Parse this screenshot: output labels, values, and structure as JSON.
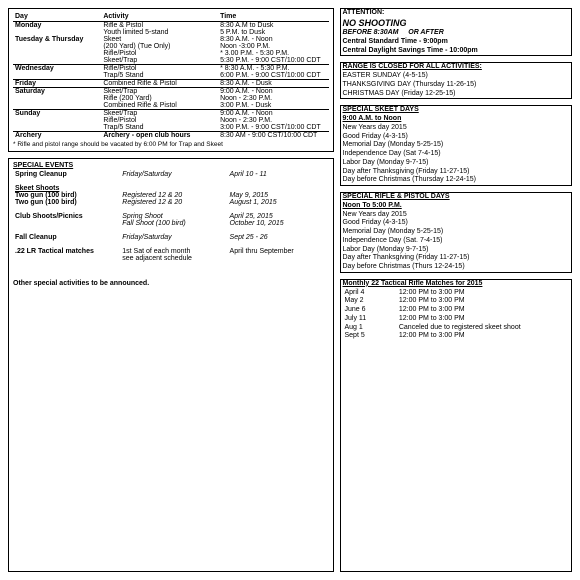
{
  "schedule": {
    "headers": [
      "Day",
      "Activity",
      "Time"
    ],
    "rows": [
      {
        "day": "Monday",
        "act": "Rifle & Pistol",
        "time": "8:30 A.M to Dusk",
        "bold": true
      },
      {
        "day": "",
        "act": "Youth limited 5-stand",
        "time": "5 P.M. to Dusk"
      },
      {
        "day": "Tuesday & Thursday",
        "act": "Skeet",
        "time": "8:30 A.M. - Noon",
        "bold": true
      },
      {
        "day": "",
        "act": "(200 Yard) (Tue Only)",
        "time": "Noon -3:00 P.M.",
        "indent": true
      },
      {
        "day": "",
        "act": "Rifle/Pistol",
        "time": "* 3.00 P.M. - 5:30 P.M."
      },
      {
        "day": "",
        "act": "Skeet/Trap",
        "time": "5:30 P.M. - 9:00 CST/10:00 CDT",
        "line": true
      },
      {
        "day": "Wednesday",
        "act": "Rifle/Pistol",
        "time": "* 8:30 A.M. - 5:30 P.M.",
        "bold": true
      },
      {
        "day": "",
        "act": "Trap/5 Stand",
        "time": "6:00 P.M. - 9:00 CST/10:00 CDT",
        "line": true
      },
      {
        "day": "Friday",
        "act": "Combined Rifle & Pistol",
        "time": "8:30 A.M. - Dusk",
        "bold": true,
        "line": true
      },
      {
        "day": "Saturday",
        "act": "Skeet/Trap",
        "time": "9:00 A.M. - Noon",
        "bold": true
      },
      {
        "day": "",
        "act": "Rifle (200 Yard)",
        "time": "Noon - 2:30 P.M."
      },
      {
        "day": "",
        "act": "Combined Rifle & Pistol",
        "time": "3:00 P.M. - Dusk",
        "line": true
      },
      {
        "day": "Sunday",
        "act": "Skeet/Trap",
        "time": "9:00 A.M. - Noon",
        "bold": true
      },
      {
        "day": "",
        "act": "Rifle/Pistol",
        "time": "Noon - 2:30 P.M."
      },
      {
        "day": "",
        "act": "Trap/5 Stand",
        "time": "3:00 P.M. - 9:00 CST/10:00 CDT",
        "line": true
      },
      {
        "day": "Archery",
        "act": "Archery - open club hours",
        "time": "8:30 AM - 9:00 CST/10:00 CDT",
        "bold": true,
        "actbold": true
      }
    ],
    "note": "* Rifle and pistol range should be vacated by 6:00 PM for Trap and Skeet"
  },
  "events": {
    "title": "SPECIAL EVENTS",
    "rows": [
      {
        "a": "Spring Cleanup",
        "b": "Friday/Saturday",
        "c": "April 10 - 11",
        "abold": true,
        "ital": true
      },
      {
        "a": "",
        "b": "",
        "c": ""
      },
      {
        "a": "Skeet Shoots",
        "b": "",
        "c": "",
        "abold": true,
        "au": true
      },
      {
        "a": "Two gun (100 bird)",
        "b": "Registered 12 & 20",
        "c": "May 9, 2015",
        "abold": true,
        "ital": true,
        "indent": true
      },
      {
        "a": "Two gun (100 bird)",
        "b": "Registered 12 & 20",
        "c": "August 1, 2015",
        "abold": true,
        "ital": true,
        "indent": true
      },
      {
        "a": "",
        "b": "",
        "c": ""
      },
      {
        "a": "Club Shoots/Picnics",
        "b": "Spring Shoot",
        "c": "April 25, 2015",
        "abold": true,
        "ital": true
      },
      {
        "a": "",
        "b": "Fall Shoot  (100 bird)",
        "c": "October 10, 2015",
        "ital": true
      },
      {
        "a": "",
        "b": "",
        "c": ""
      },
      {
        "a": "Fall Cleanup",
        "b": "Friday/Saturday",
        "c": "Sept 25 - 26",
        "abold": true,
        "ital": true
      },
      {
        "a": "",
        "b": "",
        "c": ""
      },
      {
        "a": ".22 LR Tactical matches",
        "b": "1st Sat of each month",
        "c": "April thru September",
        "abold": true
      },
      {
        "a": "",
        "b": "see adjacent schedule",
        "c": ""
      }
    ],
    "footer": "Other special activities to be announced."
  },
  "attention": {
    "title": "ATTENTION:",
    "line1": "NO SHOOTING",
    "line2_a": "BEFORE 8:30AM",
    "line2_b": "OR AFTER",
    "line3": "Central Standard Time - 9:00pm",
    "line4": "Central Daylight Savings Time - 10:00pm"
  },
  "closed": {
    "title": "RANGE IS CLOSED FOR ALL ACTIVITIES:",
    "items": [
      "EASTER SUNDAY (4-5-15)",
      "THANKSGIVING DAY (Thursday 11-26-15)",
      "CHRISTMAS DAY (Friday 12-25-15)"
    ]
  },
  "skeet": {
    "title": "SPECIAL SKEET DAYS",
    "sub": "9:00 A.M. to Noon",
    "items": [
      "New Years day 2015",
      "Good Friday (4-3-15)",
      "Memorial Day (Monday 5-25-15)",
      "Independence Day (Sat 7-4-15)",
      "Labor Day (Monday 9-7-15)",
      "Day after Thanksgiving (Friday 11-27-15)",
      "Day before Christmas (Thursday 12-24-15)"
    ]
  },
  "riflepistol": {
    "title": "SPECIAL RIFLE & PISTOL DAYS",
    "sub": "Noon To 5:00 P.M.",
    "items": [
      "New Years day 2015",
      "Good Friday (4-3-15)",
      "Memorial Day (Monday 5-25-15)",
      "Independence Day (Sat. 7-4-15)",
      "Labor Day (Monday 9-7-15)",
      "Day after Thanksgiving (Friday 11-27-15)",
      "Day before Christmas (Thurs 12-24-15)"
    ]
  },
  "monthly": {
    "title": "Monthly 22 Tactical Rifle Matches for 2015",
    "rows": [
      {
        "d": "April 4",
        "t": "12:00 PM to 3:00 PM"
      },
      {
        "d": "May 2",
        "t": "12:00 PM to 3:00 PM"
      },
      {
        "d": "June 6",
        "t": "12:00 PM to 3:00 PM"
      },
      {
        "d": "July 11",
        "t": "12:00 PM to 3:00 PM"
      },
      {
        "d": "Aug 1",
        "t": "Canceled due to registered skeet shoot"
      },
      {
        "d": "Sept 5",
        "t": "12:00 PM to 3:00 PM"
      }
    ]
  }
}
